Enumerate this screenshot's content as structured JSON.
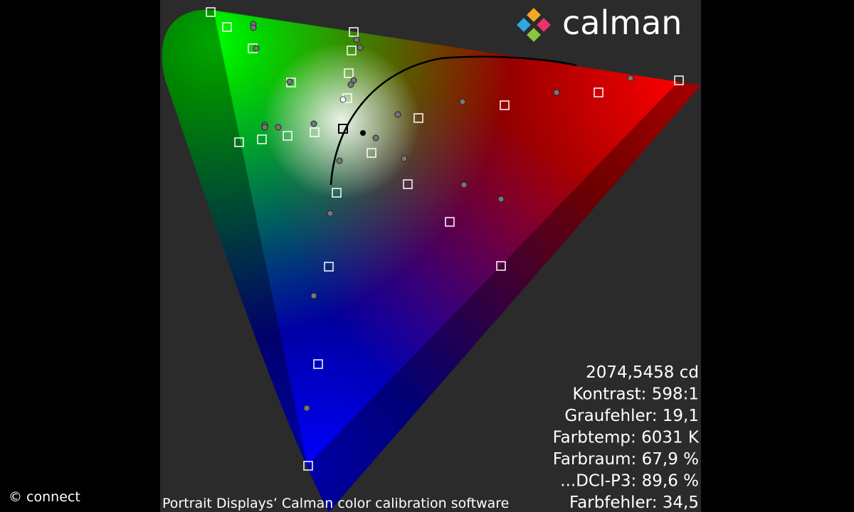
{
  "logo": {
    "text": "calman"
  },
  "stats": [
    "2074,5458 cd",
    "Kontrast: 598:1",
    "Graufehler: 19,1",
    "Farbtemp: 6031 K",
    "Farbraum: 67,9 %",
    "...DCI-P3: 89,6 %",
    "Farbfehler: 34,5"
  ],
  "caption": "Portrait Displays’ Calman color calibration software",
  "copyright": "© connect"
}
